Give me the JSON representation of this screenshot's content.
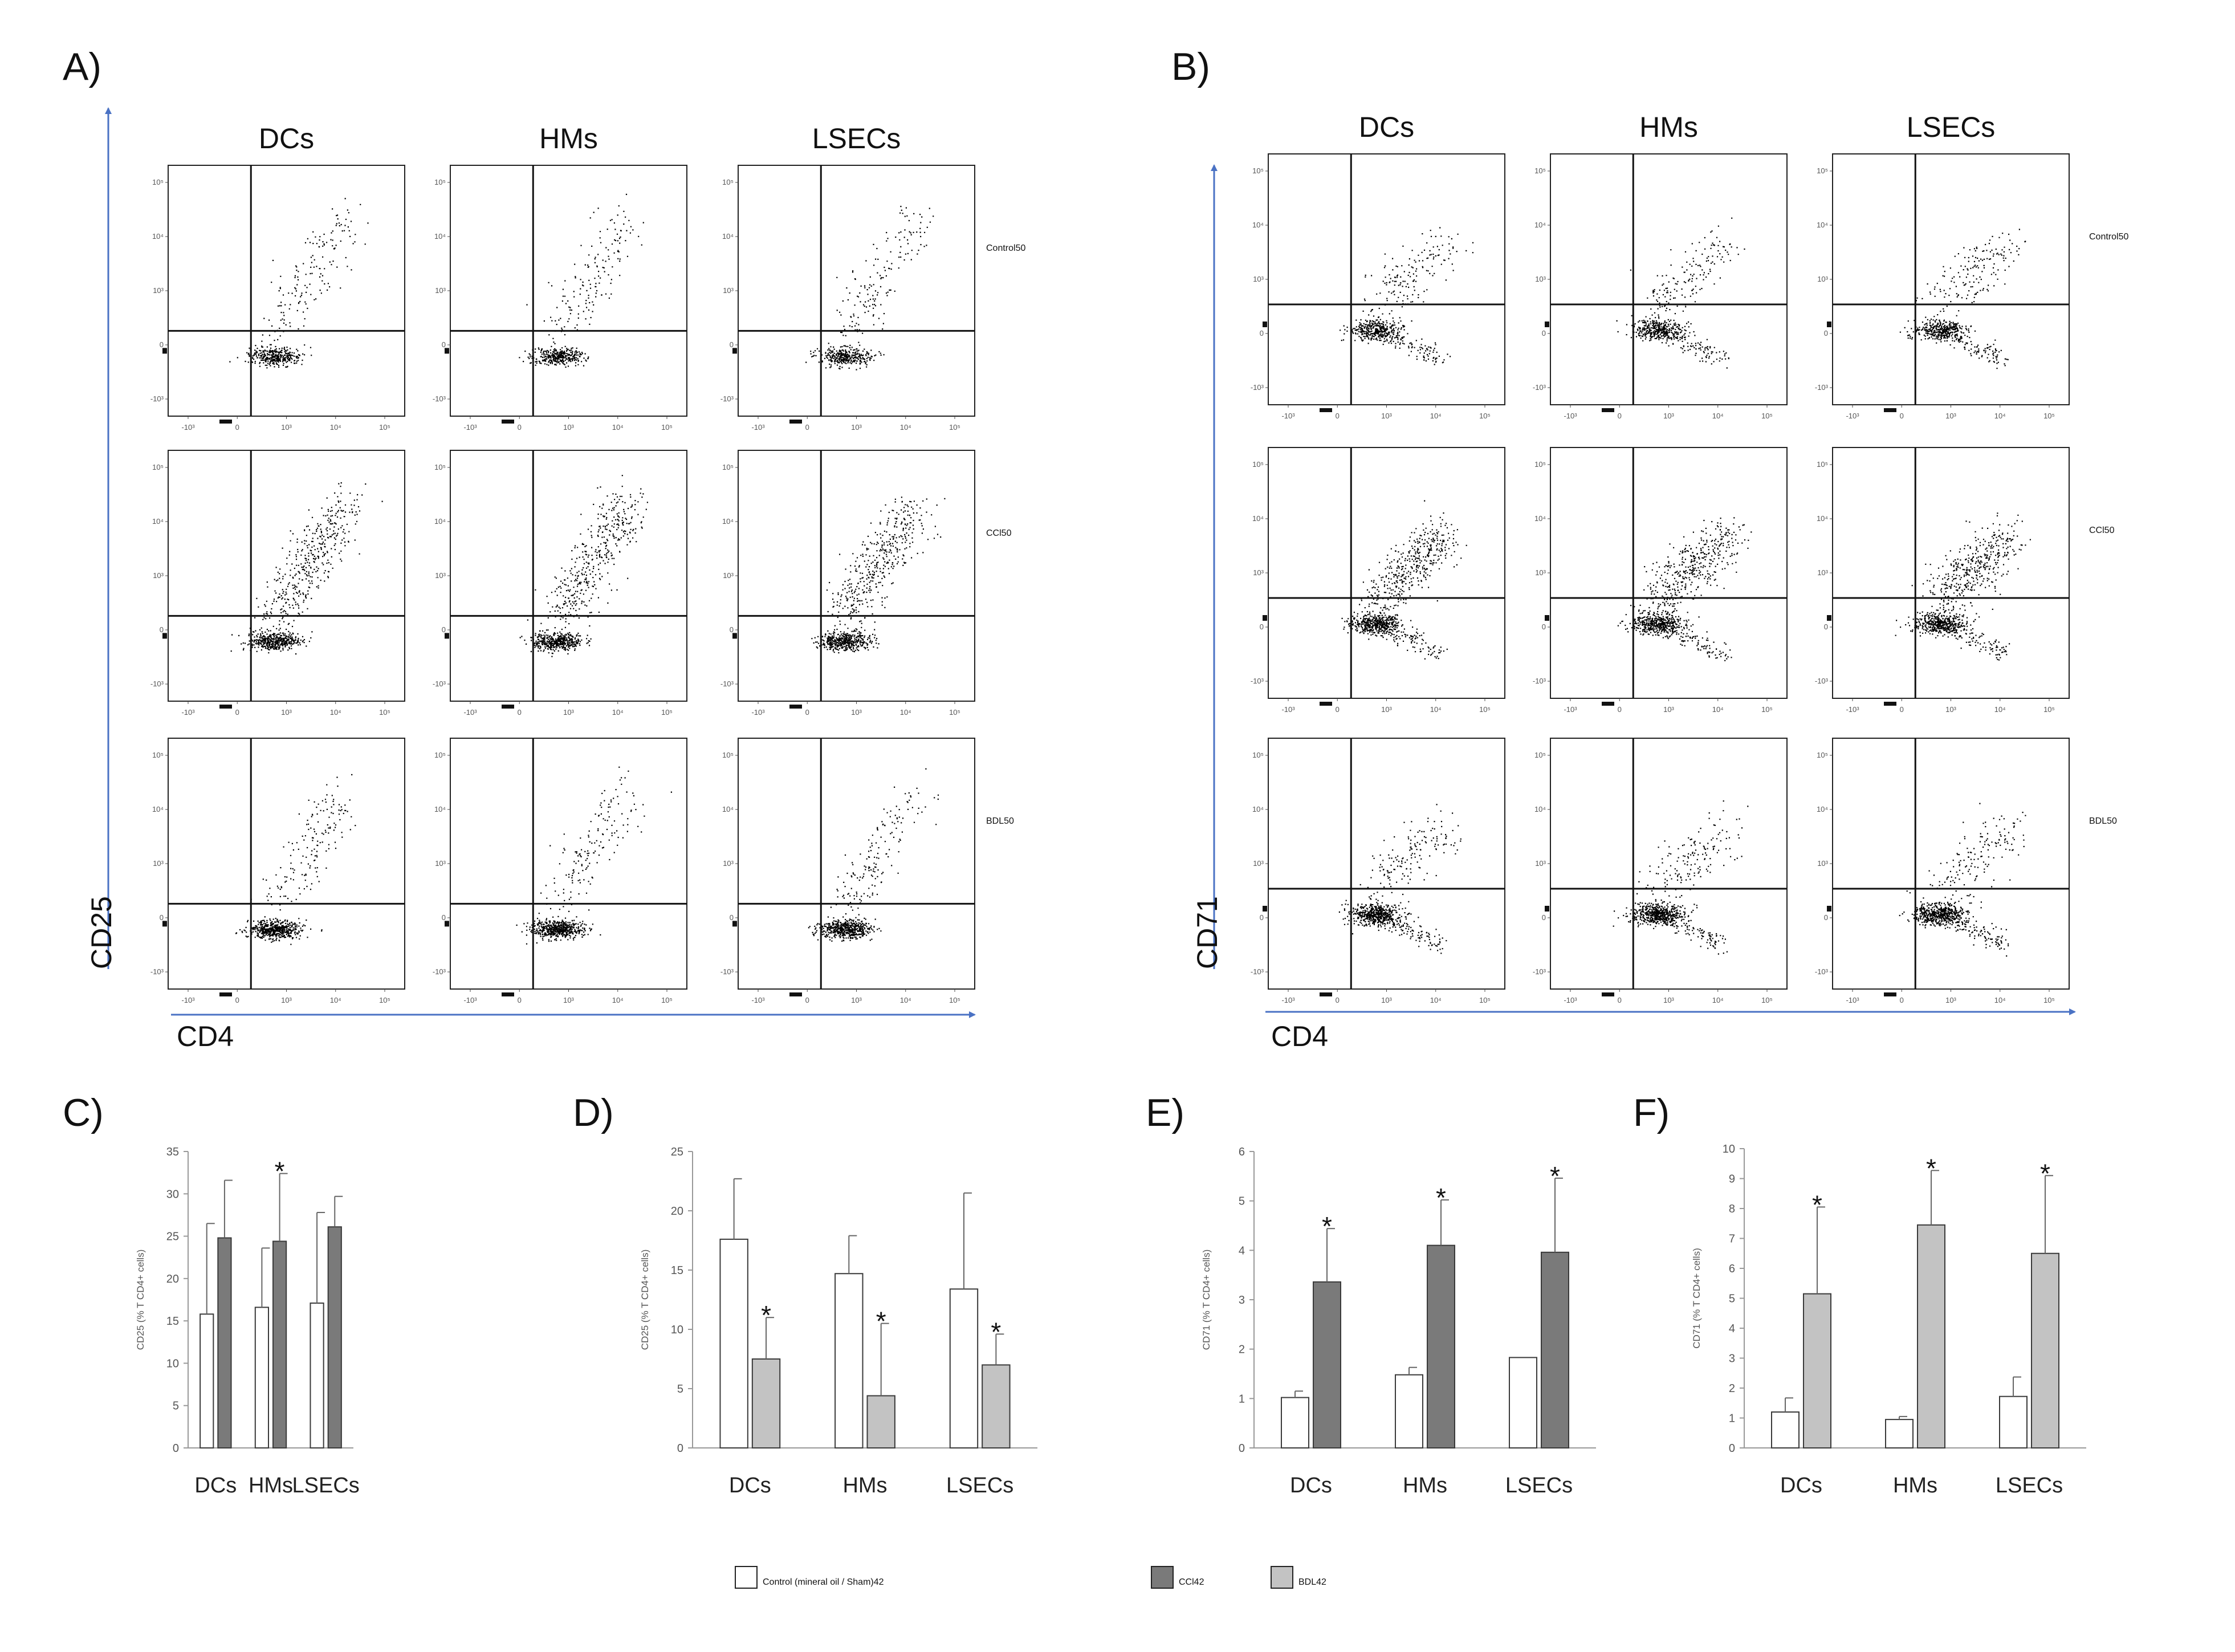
{
  "colors": {
    "arrow": "#4a72c4",
    "bar_control": "#ffffff",
    "bar_ccl4": "#7a7a7a",
    "bar_bdl": "#c3c3c3",
    "outline": "#3a3a3a",
    "dots": "#000000",
    "axis_text": "#555555"
  },
  "flow_panels": [
    {
      "letter": "A)",
      "y_axis_label": "CD25",
      "x_axis_label": "CD4",
      "columns": [
        "DCs",
        "HMs",
        "LSECs"
      ],
      "rows": [
        {
          "label": "Control",
          "sub": ""
        },
        {
          "label": "CCl",
          "sub": "4"
        },
        {
          "label": "BDL",
          "sub": ""
        }
      ],
      "y_ticks": [
        "10⁵",
        "10⁴",
        "10³",
        "0",
        "-10³"
      ],
      "x_ticks": [
        "-10³",
        "0",
        "10³",
        "10⁴",
        "10⁵"
      ]
    },
    {
      "letter": "B)",
      "y_axis_label": "CD71",
      "x_axis_label": "CD4",
      "columns": [
        "DCs",
        "HMs",
        "LSECs"
      ],
      "rows": [
        {
          "label": "Control",
          "sub": ""
        },
        {
          "label": "CCl",
          "sub": "4"
        },
        {
          "label": "BDL",
          "sub": ""
        }
      ],
      "y_ticks": [
        "10⁵",
        "10⁴",
        "10³",
        "0",
        "-10³"
      ],
      "x_ticks": [
        "-10³",
        "0",
        "10³",
        "10⁴",
        "10⁵"
      ]
    }
  ],
  "chart_data": [
    {
      "letter": "C)",
      "type": "bar",
      "ylabel": "CD25 (% T CD4+ cells)",
      "ylim": [
        0,
        35
      ],
      "yticks": [
        0,
        5,
        10,
        15,
        20,
        25,
        30,
        35
      ],
      "categories": [
        "DCs",
        "HMs",
        "LSECs"
      ],
      "series": [
        {
          "name": "Control (mineral oil / Sham)",
          "color_key": "bar_control",
          "values": [
            15.8,
            16.6,
            17.1
          ],
          "errors": [
            10.7,
            7.0,
            10.7
          ]
        },
        {
          "name": "CCl4",
          "color_key": "bar_ccl4",
          "values": [
            24.8,
            24.4,
            26.1
          ],
          "errors": [
            6.8,
            8.0,
            3.6
          ]
        }
      ],
      "significance": [
        "",
        "*",
        ""
      ]
    },
    {
      "letter": "D)",
      "type": "bar",
      "ylabel": "CD25 (% T CD4+ cells)",
      "ylim": [
        0,
        25
      ],
      "yticks": [
        0,
        5,
        10,
        15,
        20,
        25
      ],
      "categories": [
        "DCs",
        "HMs",
        "LSECs"
      ],
      "series": [
        {
          "name": "Control (mineral oil / Sham)",
          "color_key": "bar_control",
          "values": [
            17.6,
            14.7,
            13.4
          ],
          "errors": [
            5.1,
            3.2,
            8.1
          ]
        },
        {
          "name": "BDL",
          "color_key": "bar_bdl",
          "values": [
            7.5,
            4.4,
            7.0
          ],
          "errors": [
            3.5,
            6.1,
            2.6
          ]
        }
      ],
      "significance": [
        "*",
        "*",
        "*"
      ]
    },
    {
      "letter": "E)",
      "type": "bar",
      "ylabel": "CD71 (% T CD4+ cells)",
      "ylim": [
        0,
        6
      ],
      "yticks": [
        0,
        1,
        2,
        3,
        4,
        5,
        6
      ],
      "categories": [
        "DCs",
        "HMs",
        "LSECs"
      ],
      "series": [
        {
          "name": "Control (mineral oil / Sham)",
          "color_key": "bar_control",
          "values": [
            1.02,
            1.48,
            1.83
          ],
          "errors": [
            0.13,
            0.15,
            0.0
          ]
        },
        {
          "name": "CCl4",
          "color_key": "bar_ccl4",
          "values": [
            3.36,
            4.1,
            3.96
          ],
          "errors": [
            1.08,
            0.92,
            1.5
          ]
        }
      ],
      "significance": [
        "*",
        "*",
        "*"
      ]
    },
    {
      "letter": "F)",
      "type": "bar",
      "ylabel": "CD71 (% T CD4+ cells)",
      "ylim": [
        0,
        10
      ],
      "yticks": [
        0,
        1,
        2,
        3,
        4,
        5,
        6,
        7,
        8,
        9,
        10
      ],
      "categories": [
        "DCs",
        "HMs",
        "LSECs"
      ],
      "series": [
        {
          "name": "Control (mineral oil / Sham)",
          "color_key": "bar_control",
          "values": [
            1.2,
            0.95,
            1.72
          ],
          "errors": [
            0.47,
            0.1,
            0.65
          ]
        },
        {
          "name": "BDL",
          "color_key": "bar_bdl",
          "values": [
            5.15,
            7.45,
            6.5
          ],
          "errors": [
            2.9,
            1.82,
            2.6
          ]
        }
      ],
      "significance": [
        "*",
        "*",
        "*"
      ]
    }
  ],
  "legend": [
    {
      "label": "Control (mineral oil / Sham)",
      "sub": "",
      "color_key": "bar_control"
    },
    {
      "label": "CCl",
      "sub": "4",
      "color_key": "bar_ccl4"
    },
    {
      "label": "BDL",
      "sub": "",
      "color_key": "bar_bdl"
    }
  ]
}
